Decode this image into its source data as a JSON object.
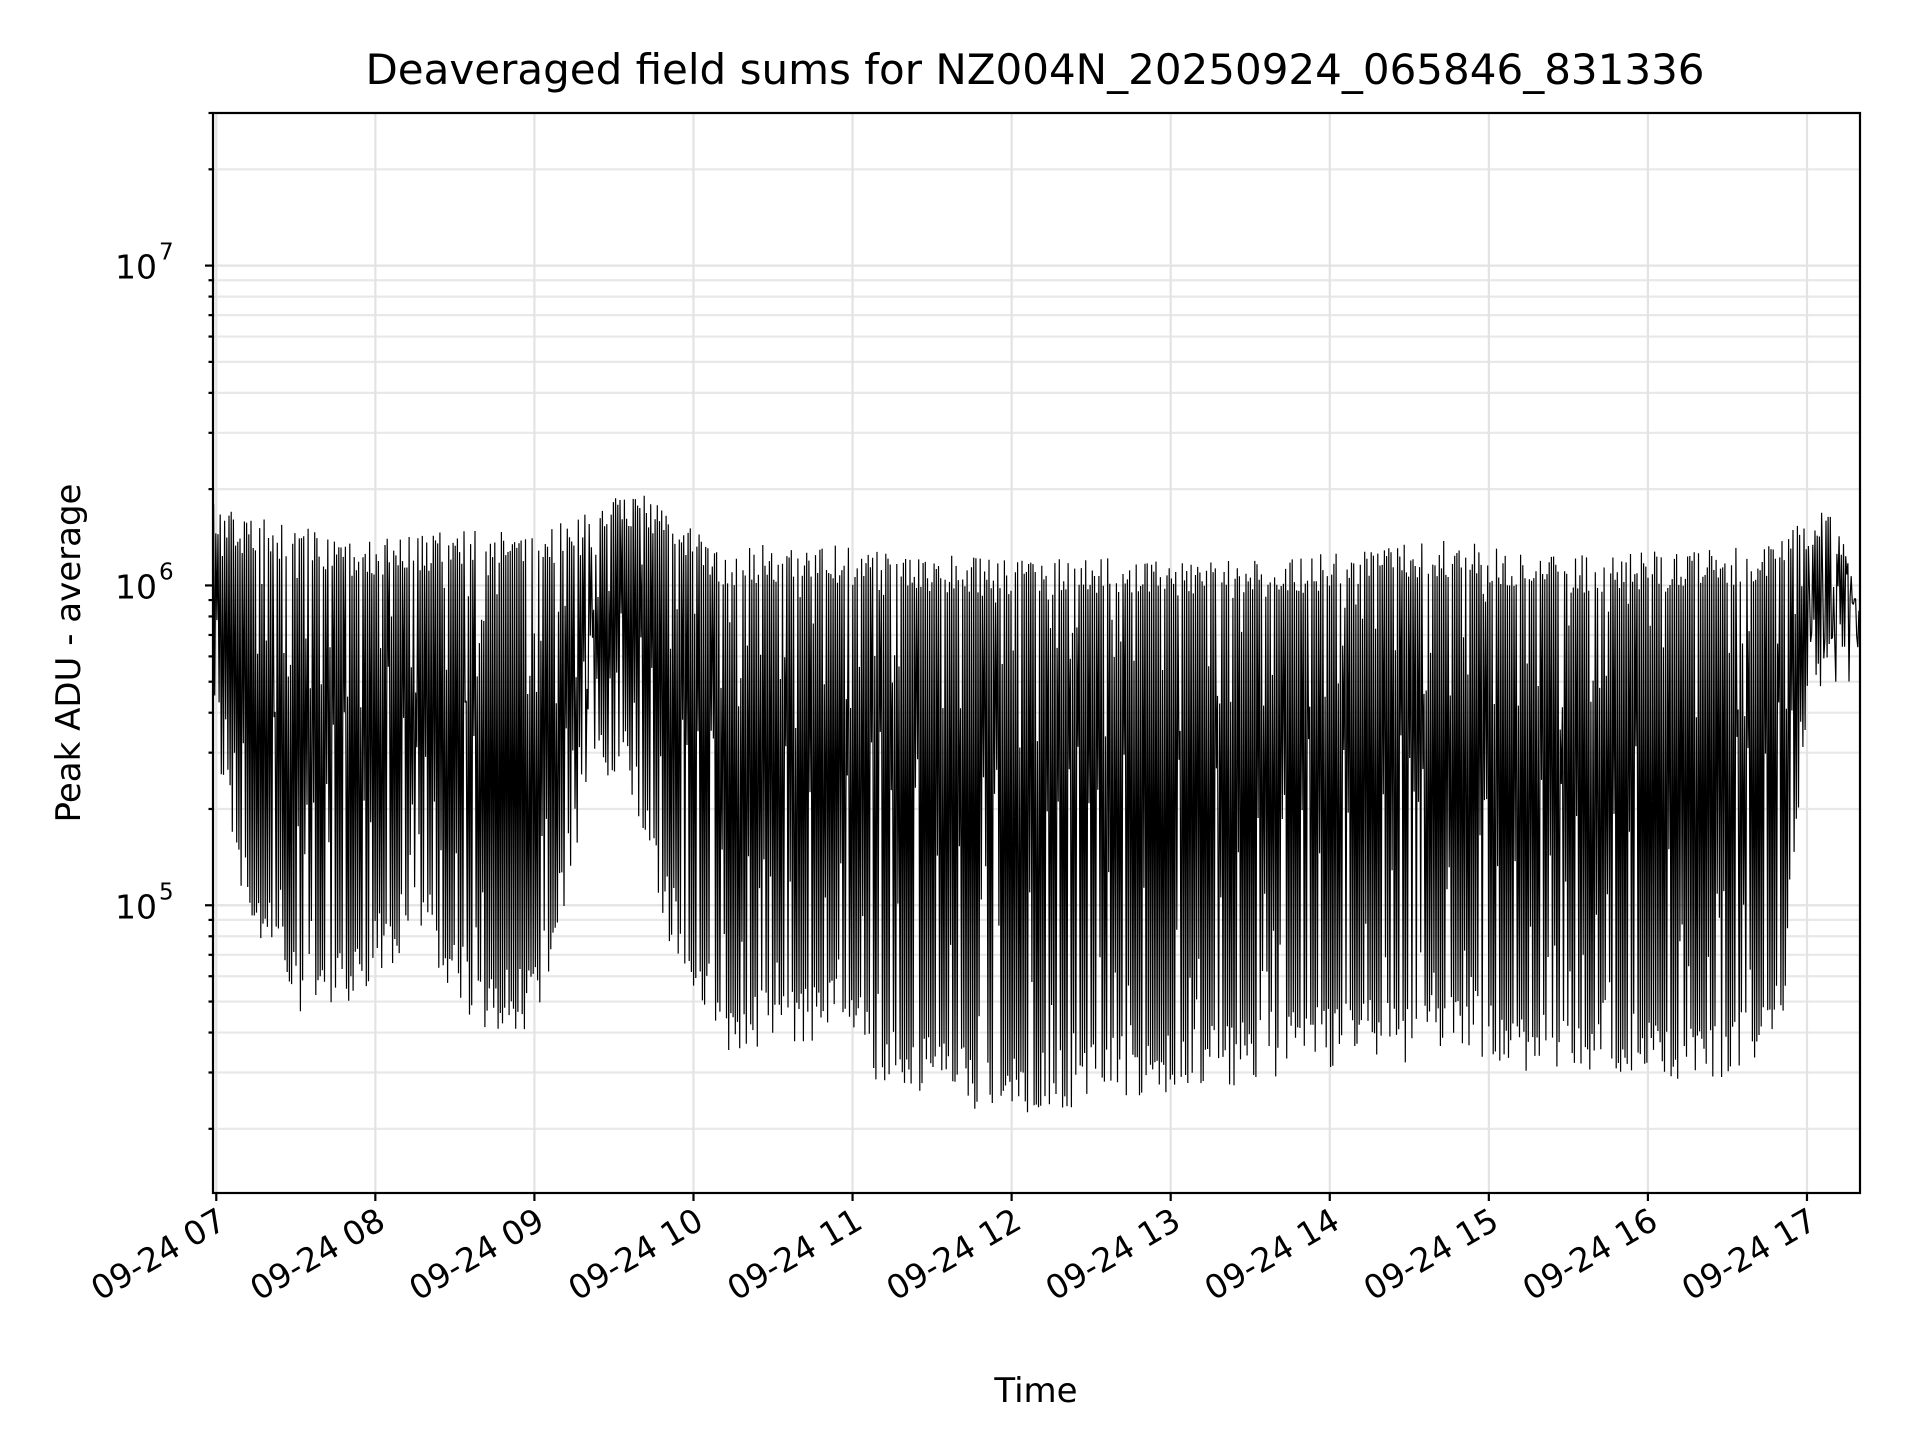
{
  "chart_data": {
    "type": "line",
    "title": "Deaveraged field sums for NZ004N_20250924_065846_831336",
    "xlabel": "Time",
    "ylabel": "Peak ADU - average",
    "yscale": "log",
    "grid": true,
    "grid_minor": true,
    "x_range": [
      "2025-09-24 06:58:46",
      "2025-09-24 17:20:00"
    ],
    "ylim": [
      12600,
      30000000
    ],
    "y_ticks": [
      {
        "value": 100000,
        "base": "10",
        "exp": "5"
      },
      {
        "value": 1000000,
        "base": "10",
        "exp": "6"
      },
      {
        "value": 10000000,
        "base": "10",
        "exp": "7"
      }
    ],
    "x_ticks": [
      {
        "time": "2025-09-24 07:00",
        "label": "09-24 07"
      },
      {
        "time": "2025-09-24 08:00",
        "label": "09-24 08"
      },
      {
        "time": "2025-09-24 09:00",
        "label": "09-24 09"
      },
      {
        "time": "2025-09-24 10:00",
        "label": "09-24 10"
      },
      {
        "time": "2025-09-24 11:00",
        "label": "09-24 11"
      },
      {
        "time": "2025-09-24 12:00",
        "label": "09-24 12"
      },
      {
        "time": "2025-09-24 13:00",
        "label": "09-24 13"
      },
      {
        "time": "2025-09-24 14:00",
        "label": "09-24 14"
      },
      {
        "time": "2025-09-24 15:00",
        "label": "09-24 15"
      },
      {
        "time": "2025-09-24 16:00",
        "label": "09-24 16"
      },
      {
        "time": "2025-09-24 17:00",
        "label": "09-24 17"
      }
    ],
    "series": [
      {
        "color": "#000000",
        "envelope": {
          "time": [
            "2025-09-24 06:59",
            "2025-09-24 07:10",
            "2025-09-24 07:30",
            "2025-09-24 07:50",
            "2025-09-24 08:15",
            "2025-09-24 08:40",
            "2025-09-24 09:00",
            "2025-09-24 09:20",
            "2025-09-24 09:35",
            "2025-09-24 09:50",
            "2025-09-24 10:10",
            "2025-09-24 10:30",
            "2025-09-24 10:50",
            "2025-09-24 11:10",
            "2025-09-24 11:30",
            "2025-09-24 11:50",
            "2025-09-24 12:10",
            "2025-09-24 12:30",
            "2025-09-24 12:50",
            "2025-09-24 13:10",
            "2025-09-24 13:30",
            "2025-09-24 13:50",
            "2025-09-24 14:10",
            "2025-09-24 14:30",
            "2025-09-24 14:50",
            "2025-09-24 15:10",
            "2025-09-24 15:30",
            "2025-09-24 15:50",
            "2025-09-24 16:10",
            "2025-09-24 16:30",
            "2025-09-24 16:50",
            "2025-09-24 17:00",
            "2025-09-24 17:10",
            "2025-09-24 17:20"
          ],
          "peak": [
            1800000,
            1650000,
            1550000,
            1400000,
            1450000,
            1500000,
            1450000,
            1700000,
            2000000,
            1850000,
            1300000,
            1350000,
            1350000,
            1300000,
            1250000,
            1250000,
            1200000,
            1250000,
            1250000,
            1200000,
            1200000,
            1250000,
            1300000,
            1350000,
            1400000,
            1300000,
            1250000,
            1250000,
            1300000,
            1300000,
            1400000,
            1700000,
            1800000,
            900000
          ],
          "trough": [
            300000,
            100000,
            45000,
            45000,
            80000,
            40000,
            40000,
            200000,
            250000,
            80000,
            35000,
            35000,
            38000,
            28000,
            25000,
            22000,
            22000,
            24000,
            25000,
            26000,
            28000,
            30000,
            32000,
            32000,
            35000,
            30000,
            28000,
            28000,
            28000,
            28000,
            35000,
            400000,
            500000,
            500000
          ]
        }
      }
    ]
  }
}
